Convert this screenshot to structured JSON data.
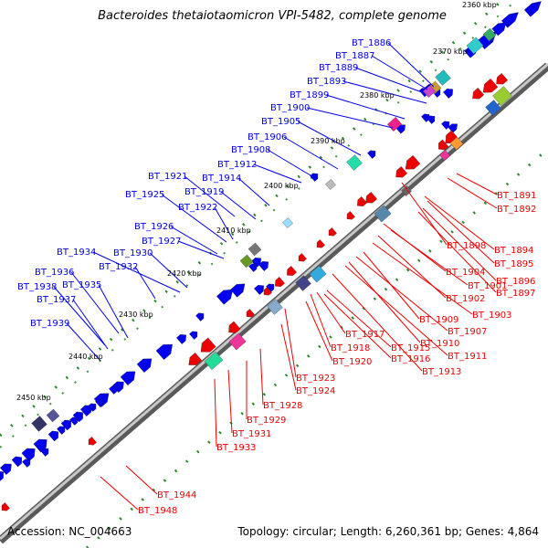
{
  "title": "Bacteroides thetaiotaomicron VPI-5482, complete genome",
  "accession_label": "Accession: NC_004663",
  "summary": "Topology: circular; Length: 6,260,361 bp; Genes: 4,864",
  "colors": {
    "forward": "#0000ee",
    "reverse": "#ee0000",
    "backbone": "#888888",
    "tick_dot": "#228822"
  },
  "positions": [
    {
      "label": "2360 kbp"
    },
    {
      "label": "2370 kbp"
    },
    {
      "label": "2380 kbp"
    },
    {
      "label": "2390 kbp"
    },
    {
      "label": "2400 kbp"
    },
    {
      "label": "2410 kbp"
    },
    {
      "label": "2420 kbp"
    },
    {
      "label": "2430 kbp"
    },
    {
      "label": "2440 kbp"
    },
    {
      "label": "2450 kbp"
    }
  ],
  "forward_genes": [
    "BT_1886",
    "BT_1887",
    "BT_1889",
    "BT_1893",
    "BT_1899",
    "BT_1900",
    "BT_1905",
    "BT_1906",
    "BT_1908",
    "BT_1912",
    "BT_1914",
    "BT_1921",
    "BT_1919",
    "BT_1925",
    "BT_1922",
    "BT_1926",
    "BT_1927",
    "BT_1934",
    "BT_1930",
    "BT_1932",
    "BT_1936",
    "BT_1935",
    "BT_1938",
    "BT_1937",
    "BT_1939"
  ],
  "reverse_genes": [
    "BT_1891",
    "BT_1892",
    "BT_1898",
    "BT_1894",
    "BT_1895",
    "BT_1896",
    "BT_1897",
    "BT_1904",
    "BT_1901",
    "BT_1902",
    "BT_1903",
    "BT_1909",
    "BT_1907",
    "BT_1910",
    "BT_1911",
    "BT_1913",
    "BT_1917",
    "BT_1918",
    "BT_1915",
    "BT_1916",
    "BT_1920",
    "BT_1923",
    "BT_1924",
    "BT_1928",
    "BT_1929",
    "BT_1931",
    "BT_1933",
    "BT_1944",
    "BT_1948"
  ]
}
